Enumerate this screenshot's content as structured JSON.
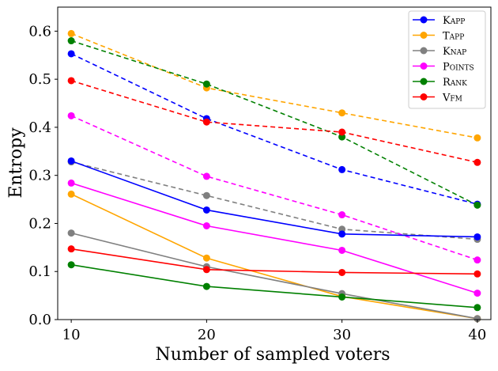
{
  "chart_data": {
    "type": "line",
    "title": "",
    "xlabel": "Number of sampled voters",
    "ylabel": "Entropy",
    "x": [
      10,
      20,
      30,
      40
    ],
    "xlim": [
      9,
      41
    ],
    "ylim": [
      0,
      0.65
    ],
    "xticks": [
      "10",
      "20",
      "30",
      "40"
    ],
    "yticks": [
      "0.0",
      "0.1",
      "0.2",
      "0.3",
      "0.4",
      "0.5",
      "0.6"
    ],
    "grid": false,
    "legend_position": "top-right",
    "legend": [
      {
        "label": "Kapp",
        "color": "#0000ff"
      },
      {
        "label": "Tapp",
        "color": "#ffa500"
      },
      {
        "label": "Knap",
        "color": "#808080"
      },
      {
        "label": "Points",
        "color": "#ff00ff"
      },
      {
        "label": "Rank",
        "color": "#008000"
      },
      {
        "label": "Vfm",
        "color": "#ff0000"
      }
    ],
    "series": [
      {
        "name": "Kapp",
        "style": "dashed",
        "color": "#0000ff",
        "values": [
          0.553,
          0.418,
          0.312,
          0.24
        ]
      },
      {
        "name": "Tapp",
        "style": "dashed",
        "color": "#ffa500",
        "values": [
          0.595,
          0.482,
          0.43,
          0.378
        ]
      },
      {
        "name": "Knap",
        "style": "dashed",
        "color": "#808080",
        "values": [
          0.328,
          0.258,
          0.188,
          0.167
        ]
      },
      {
        "name": "Points",
        "style": "dashed",
        "color": "#ff00ff",
        "values": [
          0.424,
          0.298,
          0.218,
          0.124
        ]
      },
      {
        "name": "Rank",
        "style": "dashed",
        "color": "#008000",
        "values": [
          0.58,
          0.49,
          0.38,
          0.238
        ]
      },
      {
        "name": "Vfm",
        "style": "dashed",
        "color": "#ff0000",
        "values": [
          0.497,
          0.411,
          0.39,
          0.327
        ]
      },
      {
        "name": "Kapp",
        "style": "solid",
        "color": "#0000ff",
        "values": [
          0.33,
          0.228,
          0.178,
          0.172
        ]
      },
      {
        "name": "Tapp",
        "style": "solid",
        "color": "#ffa500",
        "values": [
          0.261,
          0.128,
          0.048,
          0.002
        ]
      },
      {
        "name": "Knap",
        "style": "solid",
        "color": "#808080",
        "values": [
          0.18,
          0.11,
          0.054,
          0.002
        ]
      },
      {
        "name": "Points",
        "style": "solid",
        "color": "#ff00ff",
        "values": [
          0.284,
          0.195,
          0.144,
          0.055
        ]
      },
      {
        "name": "Rank",
        "style": "solid",
        "color": "#008000",
        "values": [
          0.114,
          0.069,
          0.047,
          0.025
        ]
      },
      {
        "name": "Vfm",
        "style": "solid",
        "color": "#ff0000",
        "values": [
          0.147,
          0.104,
          0.098,
          0.095
        ]
      }
    ]
  }
}
